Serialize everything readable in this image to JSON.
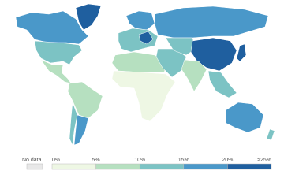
{
  "legend": {
    "no_data": {
      "label": "No data",
      "color": "#e8e8e8"
    },
    "ticks": [
      "0%",
      "5%",
      "10%",
      "15%",
      "20%",
      ">25%"
    ],
    "colors": [
      "#eef7e4",
      "#b6e0c0",
      "#7cc3c4",
      "#4a98c9",
      "#1f5f9f"
    ]
  }
}
